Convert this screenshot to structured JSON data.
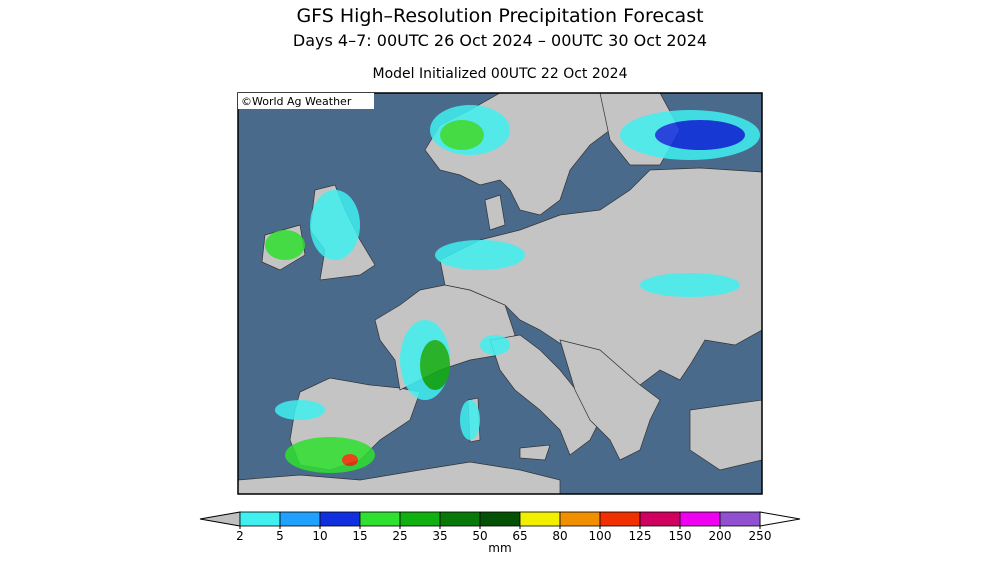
{
  "title": "GFS High–Resolution Precipitation Forecast",
  "subtitle": "Days 4–7: 00UTC 26 Oct 2024 – 00UTC 30 Oct 2024",
  "init": "Model Initialized 00UTC 22 Oct 2024",
  "credit": "©World Ag Weather",
  "colorbar": {
    "levels": [
      2,
      5,
      10,
      15,
      25,
      35,
      50,
      65,
      80,
      100,
      125,
      150,
      200,
      250
    ],
    "colors": [
      "#40f0f0",
      "#20a0ff",
      "#1030e0",
      "#30e030",
      "#10b010",
      "#087808",
      "#045004",
      "#f0f000",
      "#f09000",
      "#f03000",
      "#d00060",
      "#f000f0",
      "#9050d0"
    ],
    "below_color": "#c0c0c0",
    "unit": "mm"
  }
}
